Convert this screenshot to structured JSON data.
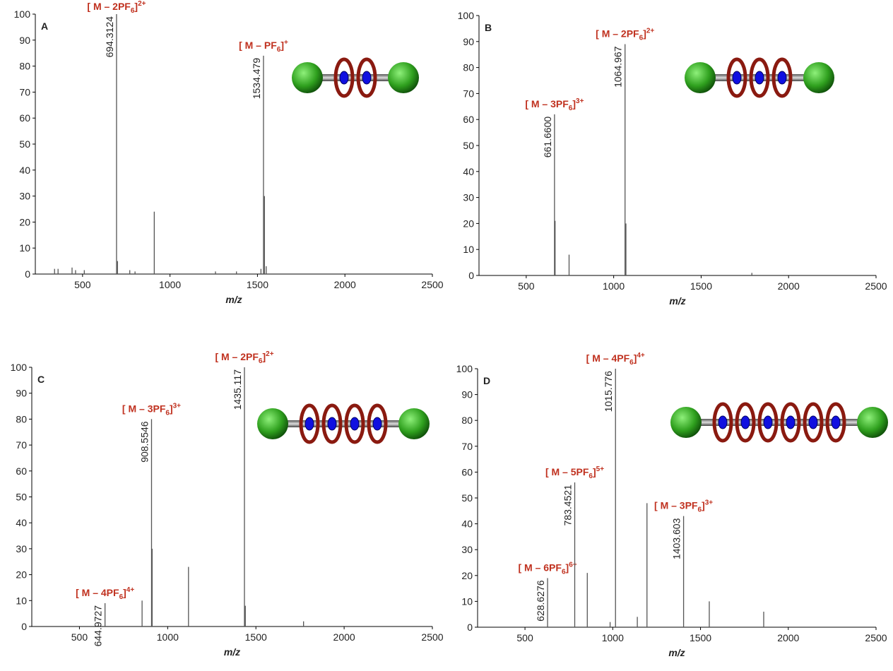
{
  "chart_data": [
    {
      "type": "spectrum",
      "panel": "A",
      "xlabel": "m/z",
      "xlim": [
        230,
        2500
      ],
      "xticks": [
        500,
        1000,
        1500,
        2000,
        2500
      ],
      "ylim": [
        0,
        100
      ],
      "yticks": [
        0,
        10,
        20,
        30,
        40,
        50,
        60,
        70,
        80,
        90,
        100
      ],
      "color": "#555555",
      "label_color": "#c0311f",
      "x": [
        340,
        360,
        440,
        460,
        510,
        694.3124,
        700,
        770,
        800,
        910,
        1260,
        1380,
        1520,
        1534.479,
        1540,
        1550
      ],
      "values": [
        2,
        2,
        2.5,
        1.5,
        1.5,
        100,
        5,
        1.5,
        1,
        24,
        1,
        1,
        2,
        84,
        30,
        3
      ],
      "x_labels": [
        null,
        null,
        null,
        null,
        null,
        "694.3124",
        null,
        null,
        null,
        null,
        null,
        null,
        null,
        "1534.479",
        null,
        null
      ],
      "ions": [
        null,
        null,
        null,
        null,
        null,
        {
          "main": "[ M – 2PF",
          "sub": "6",
          "end": "]",
          "sup": "2+"
        },
        null,
        null,
        null,
        null,
        null,
        null,
        null,
        {
          "main": "[ M – PF",
          "sub": "6",
          "end": "]",
          "sup": "+"
        },
        null,
        null
      ]
    },
    {
      "type": "spectrum",
      "panel": "B",
      "xlabel": "m/z",
      "xlim": [
        230,
        2500
      ],
      "xticks": [
        500,
        1000,
        1500,
        2000,
        2500
      ],
      "ylim": [
        0,
        100
      ],
      "yticks": [
        0,
        10,
        20,
        30,
        40,
        50,
        60,
        70,
        80,
        90,
        100
      ],
      "color": "#555555",
      "label_color": "#c0311f",
      "x": [
        661.66,
        665,
        745,
        1064.967,
        1070,
        1790
      ],
      "values": [
        62,
        21,
        8,
        89,
        20,
        1
      ],
      "x_labels": [
        "661.6600",
        null,
        null,
        "1064.967",
        null,
        null
      ],
      "ions": [
        {
          "main": "[ M – 3PF",
          "sub": "6",
          "end": "]",
          "sup": "3+"
        },
        null,
        null,
        {
          "main": "[ M – 2PF",
          "sub": "6",
          "end": "]",
          "sup": "2+"
        },
        null,
        null
      ]
    },
    {
      "type": "spectrum",
      "panel": "C",
      "xlabel": "m/z",
      "xlim": [
        230,
        2500
      ],
      "xticks": [
        500,
        1000,
        1500,
        2000,
        2500
      ],
      "ylim": [
        0,
        100
      ],
      "yticks": [
        0,
        10,
        20,
        30,
        40,
        50,
        60,
        70,
        80,
        90,
        100
      ],
      "color": "#555555",
      "label_color": "#c0311f",
      "x": [
        644.9727,
        855,
        908.5546,
        912,
        1118,
        1435.117,
        1440,
        1770
      ],
      "values": [
        9,
        10,
        80,
        30,
        23,
        100,
        8,
        2
      ],
      "x_labels": [
        "644.9727",
        null,
        "908.5546",
        null,
        null,
        "1435.117",
        null,
        null
      ],
      "ions": [
        {
          "main": "[ M – 4PF",
          "sub": "6",
          "end": "]",
          "sup": "4+"
        },
        null,
        {
          "main": "[ M – 3PF",
          "sub": "6",
          "end": "]",
          "sup": "3+"
        },
        null,
        null,
        {
          "main": "[ M – 2PF",
          "sub": "6",
          "end": "]",
          "sup": "2+"
        },
        null,
        null
      ]
    },
    {
      "type": "spectrum",
      "panel": "D",
      "xlabel": "m/z",
      "xlim": [
        230,
        2500
      ],
      "xticks": [
        500,
        1000,
        1500,
        2000,
        2500
      ],
      "ylim": [
        0,
        100
      ],
      "yticks": [
        0,
        10,
        20,
        30,
        40,
        50,
        60,
        70,
        80,
        90,
        100
      ],
      "color": "#555555",
      "label_color": "#c0311f",
      "x": [
        628.6276,
        783.4521,
        855,
        985,
        1015.776,
        1140,
        1195,
        1403.603,
        1550,
        1860
      ],
      "values": [
        19,
        56,
        21,
        2,
        100,
        4,
        48,
        43,
        10,
        6
      ],
      "x_labels": [
        "628.6276",
        "783.4521",
        null,
        null,
        "1015.776",
        null,
        null,
        "1403.603",
        null,
        null
      ],
      "ions": [
        {
          "main": "[ M – 6PF",
          "sub": "6",
          "end": "]",
          "sup": "6+"
        },
        {
          "main": "[ M – 5PF",
          "sub": "6",
          "end": "]",
          "sup": "5+"
        },
        null,
        null,
        {
          "main": "[ M – 4PF",
          "sub": "6",
          "end": "]",
          "sup": "4+"
        },
        null,
        null,
        {
          "main": "[ M – 3PF",
          "sub": "6",
          "end": "]",
          "sup": "3+"
        },
        null,
        null
      ]
    }
  ]
}
